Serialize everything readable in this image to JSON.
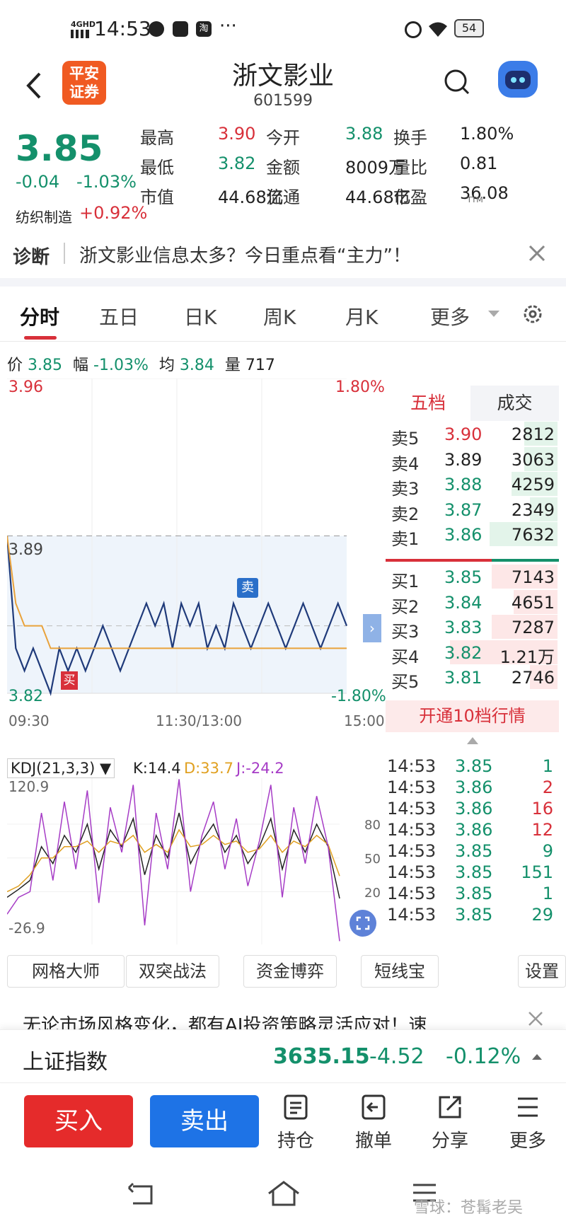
{
  "status": {
    "time": "14:53",
    "signal": "4GHD",
    "battery": "54",
    "dots": "···"
  },
  "header": {
    "title": "浙文影业",
    "code": "601599",
    "logo_line1": "平安",
    "logo_line2": "证券"
  },
  "quote": {
    "price": "3.85",
    "change": "-0.04",
    "change_pct": "-1.03%",
    "sector": "纺织制造",
    "sector_pct": "+0.92%",
    "cells": [
      {
        "label": "最高",
        "value": "3.90",
        "color": "#d8303a"
      },
      {
        "label": "今开",
        "value": "3.88",
        "color": "#14906b"
      },
      {
        "label": "换手",
        "value": "1.80%",
        "color": "#222222"
      },
      {
        "label": "最低",
        "value": "3.82",
        "color": "#14906b"
      },
      {
        "label": "金额",
        "value": "8009万",
        "color": "#222222"
      },
      {
        "label": "量比",
        "value": "0.81",
        "color": "#222222"
      },
      {
        "label": "市值",
        "value": "44.68亿",
        "color": "#222222"
      },
      {
        "label": "流通",
        "value": "44.68亿",
        "color": "#222222"
      },
      {
        "label": "市盈",
        "value": "36.08",
        "color": "#222222"
      }
    ],
    "ttm": "TTM"
  },
  "diagnosis": {
    "label": "诊断",
    "text": "浙文影业信息太多？今日重点看“主力”！"
  },
  "tabs": [
    "分时",
    "五日",
    "日K",
    "周K",
    "月K",
    "更多"
  ],
  "info": {
    "price_label": "价",
    "price": "3.85",
    "amp_label": "幅",
    "amp": "-1.03%",
    "avg_label": "均",
    "avg": "3.84",
    "vol_label": "量",
    "vol": "717"
  },
  "chart_data": [
    {
      "type": "line",
      "title": "分时",
      "y_top": "3.96",
      "y_mid": "3.89",
      "y_bottom": "3.82",
      "pct_top": "1.80%",
      "pct_bottom": "-1.80%",
      "ylim": [
        3.82,
        3.96
      ],
      "reference_price": 3.89,
      "x_labels": [
        "09:30",
        "11:30/13:00",
        "15:00"
      ],
      "series": [
        {
          "values": [
            3.89,
            3.84,
            3.83,
            3.84,
            3.83,
            3.82,
            3.84,
            3.83,
            3.84,
            3.83,
            3.84,
            3.85,
            3.84,
            3.83,
            3.84,
            3.85,
            3.86,
            3.85,
            3.86,
            3.84,
            3.86,
            3.85,
            3.86,
            3.84,
            3.85,
            3.84,
            3.86,
            3.85,
            3.84,
            3.85,
            3.86,
            3.85,
            3.84,
            3.85,
            3.86,
            3.85,
            3.84,
            3.85,
            3.86,
            3.85
          ]
        },
        {
          "values": [
            3.89,
            3.86,
            3.85,
            3.85,
            3.85,
            3.84,
            3.84,
            3.84,
            3.84,
            3.84,
            3.84,
            3.84,
            3.84,
            3.84,
            3.84,
            3.84,
            3.84,
            3.84,
            3.84,
            3.84,
            3.84,
            3.84,
            3.84,
            3.84,
            3.84,
            3.84,
            3.84,
            3.84,
            3.84,
            3.84,
            3.84,
            3.84,
            3.84,
            3.84,
            3.84,
            3.84,
            3.84,
            3.84,
            3.84,
            3.84
          ]
        }
      ],
      "markers": {
        "buy": "买",
        "sell": "卖"
      }
    },
    {
      "type": "line",
      "title": "KDJ(21,3,3)",
      "k": "K:14.4",
      "d": "D:33.7",
      "j": "J:-24.2",
      "y_top": "120.9",
      "y_bottom": "-26.9",
      "ylim": [
        -26.9,
        120.9
      ],
      "ticks": [
        "80",
        "50",
        "20"
      ],
      "series": [
        {
          "name": "K",
          "values": [
            15,
            22,
            30,
            60,
            45,
            70,
            55,
            80,
            40,
            75,
            60,
            85,
            35,
            70,
            50,
            90,
            45,
            65,
            80,
            55,
            70,
            45,
            60,
            85,
            40,
            75,
            55,
            80,
            60,
            14
          ]
        },
        {
          "name": "D",
          "values": [
            20,
            25,
            35,
            50,
            50,
            60,
            60,
            65,
            55,
            65,
            62,
            70,
            55,
            62,
            55,
            75,
            60,
            62,
            70,
            62,
            65,
            55,
            58,
            70,
            55,
            65,
            60,
            70,
            62,
            34
          ]
        },
        {
          "name": "J",
          "values": [
            0,
            15,
            20,
            90,
            30,
            100,
            40,
            110,
            10,
            95,
            55,
            115,
            -10,
            90,
            40,
            120,
            20,
            70,
            100,
            40,
            85,
            25,
            65,
            115,
            15,
            95,
            45,
            105,
            60,
            -24
          ]
        }
      ]
    }
  ],
  "orderbook": {
    "tab_active": "五档",
    "tab_other": "成交",
    "asks": [
      {
        "label": "卖5",
        "price": "3.90",
        "vol": "2812",
        "pc": "#d8303a",
        "bar": 0.3
      },
      {
        "label": "卖4",
        "price": "3.89",
        "vol": "3063",
        "pc": "#222222",
        "bar": 0.3
      },
      {
        "label": "卖3",
        "price": "3.88",
        "vol": "4259",
        "pc": "#14906b",
        "bar": 0.42
      },
      {
        "label": "卖2",
        "price": "3.87",
        "vol": "2349",
        "pc": "#14906b",
        "bar": 0.25
      },
      {
        "label": "卖1",
        "price": "3.86",
        "vol": "7632",
        "pc": "#14906b",
        "bar": 0.62
      }
    ],
    "bids": [
      {
        "label": "买1",
        "price": "3.85",
        "vol": "7143",
        "pc": "#14906b",
        "bar": 0.6
      },
      {
        "label": "买2",
        "price": "3.84",
        "vol": "4651",
        "pc": "#14906b",
        "bar": 0.4
      },
      {
        "label": "买3",
        "price": "3.83",
        "vol": "7287",
        "pc": "#14906b",
        "bar": 0.6
      },
      {
        "label": "买4",
        "price": "3.82",
        "vol": "1.21万",
        "pc": "#14906b",
        "bar": 0.98
      },
      {
        "label": "买5",
        "price": "3.81",
        "vol": "2746",
        "pc": "#14906b",
        "bar": 0.25
      }
    ],
    "banner": "开通10档行情"
  },
  "trades": [
    {
      "t": "14:53",
      "p": "3.85",
      "v": "1",
      "vc": "#14906b"
    },
    {
      "t": "14:53",
      "p": "3.86",
      "v": "2",
      "vc": "#d8303a"
    },
    {
      "t": "14:53",
      "p": "3.86",
      "v": "16",
      "vc": "#d8303a"
    },
    {
      "t": "14:53",
      "p": "3.86",
      "v": "12",
      "vc": "#d8303a"
    },
    {
      "t": "14:53",
      "p": "3.85",
      "v": "9",
      "vc": "#14906b"
    },
    {
      "t": "14:53",
      "p": "3.85",
      "v": "151",
      "vc": "#14906b"
    },
    {
      "t": "14:53",
      "p": "3.85",
      "v": "1",
      "vc": "#14906b"
    },
    {
      "t": "14:53",
      "p": "3.85",
      "v": "29",
      "vc": "#14906b"
    }
  ],
  "tools": [
    "网格大师",
    "双突战法",
    "资金博弈",
    "短线宝",
    "设置"
  ],
  "ad": "无论市场风格变化，都有AI投资策略灵活应对！速",
  "index": {
    "name": "上证指数",
    "value": "3635.15",
    "change": "-4.52",
    "pct": "-0.12%"
  },
  "actions": {
    "buy": "买入",
    "sell": "卖出",
    "items": [
      "持仓",
      "撤单",
      "分享",
      "更多"
    ]
  },
  "watermark": "雪球：苍髯老吴"
}
